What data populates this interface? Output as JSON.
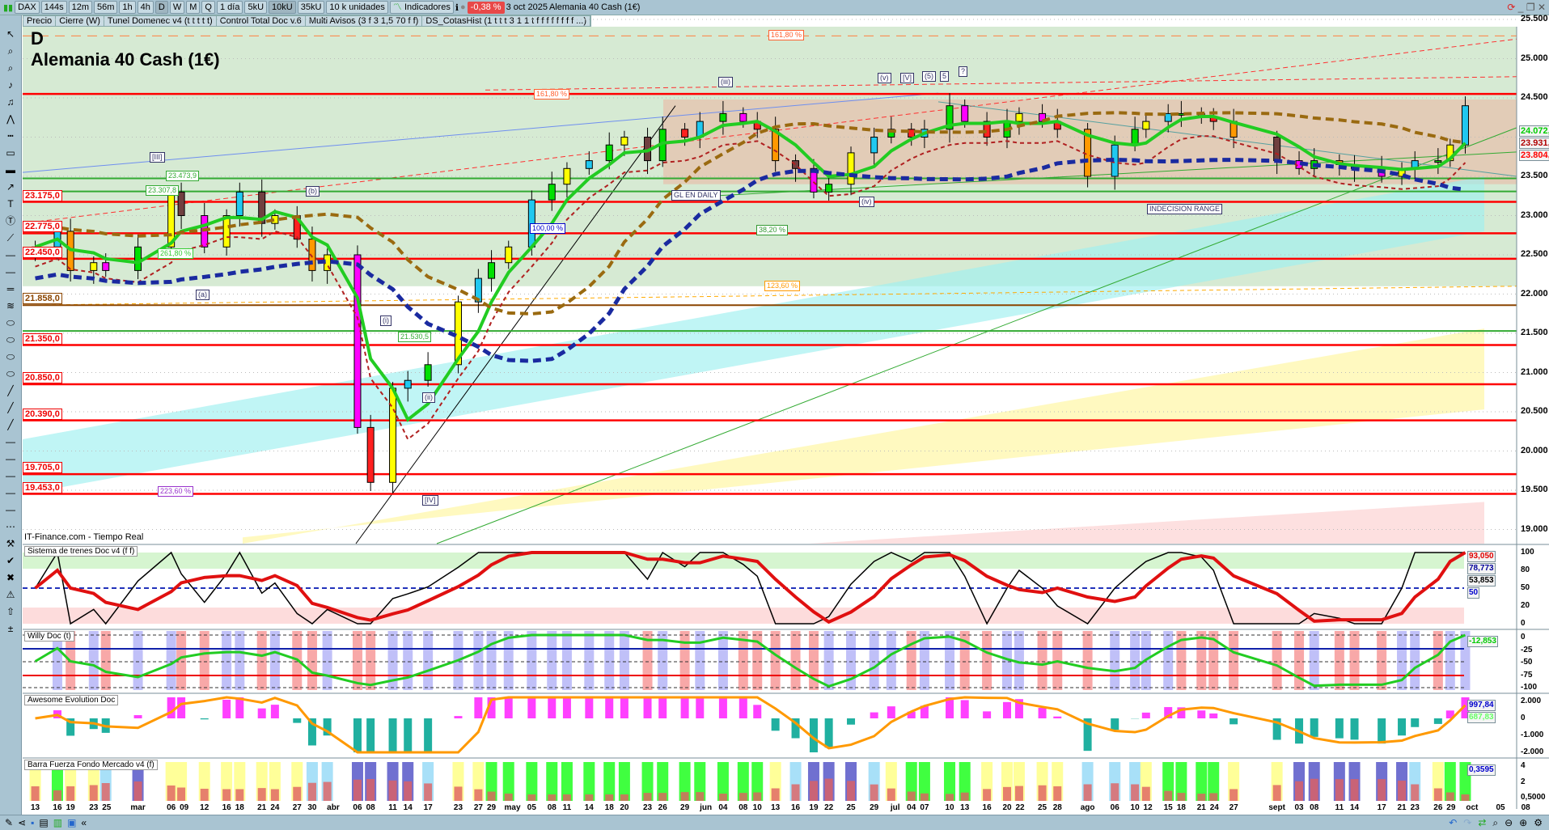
{
  "toolbar": {
    "symbol": "DAX",
    "timeframes": [
      "144s",
      "12m",
      "56m",
      "1h",
      "4h",
      "D",
      "W",
      "M",
      "Q"
    ],
    "active_timeframe": "D",
    "period": "1 día",
    "units": [
      "5kU",
      "10kU",
      "35kU"
    ],
    "active_unit": "10kU",
    "units_select": "10 k unidades",
    "indicators_label": "Indicadores",
    "change_pct": "-0,38 %",
    "date": "3 oct 2025",
    "instrument": "Alemania 40 Cash (1€)"
  },
  "legend_bar": [
    "Precio",
    "Cierre (W)",
    "Tunel Domenec v4 (t t t t t)",
    "Control Total Doc v.6",
    "Multi Avisos (3 f 3 1,5 70 f f)",
    "DS_CotasHist (1 t t t 3 1 1 t f f f f f f f f ...)"
  ],
  "chart": {
    "period_letter": "D",
    "title": "Alemania 40 Cash (1€)",
    "source": "IT-Finance.com - Tiempo Real"
  },
  "price_axis": [
    "25.500",
    "25.000",
    "24.500",
    "23.500",
    "23.000",
    "22.500",
    "22.000",
    "21.500",
    "21.000",
    "20.500",
    "20.000",
    "19.500",
    "19.000"
  ],
  "price_tags": [
    {
      "text": "24.072,8",
      "color": "#00cc00"
    },
    {
      "text": "23.931,9",
      "color": "#b00000"
    },
    {
      "text": "23.804,2",
      "color": "#ff0000"
    }
  ],
  "level_labels": [
    "23.175,0",
    "22.775,0",
    "22.450,0",
    "21.858,0",
    "21.350,0",
    "20.850,0",
    "20.390,0",
    "19.705,0",
    "19.453,0"
  ],
  "levels": [
    {
      "price": 24550,
      "color": "#ff0000"
    },
    {
      "price": 23175,
      "color": "#ff0000"
    },
    {
      "price": 22775,
      "color": "#ff0000"
    },
    {
      "price": 22450,
      "color": "#ff0000"
    },
    {
      "price": 21858,
      "color": "#8b4500"
    },
    {
      "price": 21530,
      "color": "#33aa33"
    },
    {
      "price": 21350,
      "color": "#ff0000"
    },
    {
      "price": 20850,
      "color": "#ff0000"
    },
    {
      "price": 20390,
      "color": "#ff0000"
    },
    {
      "price": 19705,
      "color": "#ff0000"
    },
    {
      "price": 19453,
      "color": "#ff0000"
    },
    {
      "price": 23474,
      "color": "#33aa33"
    },
    {
      "price": 23308,
      "color": "#33aa33"
    }
  ],
  "annotations": {
    "fib_top": "161,80 %",
    "fib_mid": "161,80 %",
    "fib_100": "100,00 %",
    "fib_123": "123,60 %",
    "fib_38": "38,20 %",
    "fib_261": "261,80 %",
    "fib_223": "223,60 %",
    "wave_III": "[III]",
    "wave_b": "(b)",
    "wave_a": "(a)",
    "wave_i": "(i)",
    "wave_ii": "(ii)",
    "wave_IV": "[IV]",
    "wave_iii": "(iii)",
    "wave_iv": "(iv)",
    "wave_v": "(v)",
    "wave_V": "[V]",
    "wave_5p": "(5)",
    "wave_5": "5",
    "question": "?",
    "gl": "GL EN DAILY",
    "range": "INDECISION RANGE",
    "p1": "23.473,9",
    "p2": "23.307,8",
    "p3": "21.530,5"
  },
  "panels": [
    {
      "title": "Sistema de trenes Doc v4 (f f)",
      "axis": [
        "100",
        "80",
        "50",
        "20",
        "0"
      ],
      "tags": [
        {
          "text": "93,050",
          "color": "#e00000"
        },
        {
          "text": "78,773",
          "color": "#000099"
        },
        {
          "text": "53,853",
          "color": "#000000"
        },
        {
          "text": "50",
          "color": "#0000cc"
        }
      ]
    },
    {
      "title": "Willy Doc (t)",
      "axis": [
        "0",
        "-25",
        "-50",
        "-75",
        "-100"
      ],
      "tags": [
        {
          "text": "-12,853",
          "color": "#00cc00"
        }
      ]
    },
    {
      "title": "Awesome Evolution Doc",
      "axis": [
        "2.000",
        "0",
        "-1.000",
        "-2.000"
      ],
      "tags": [
        {
          "text": "997,84",
          "color": "#0000cc"
        },
        {
          "text": "687,83",
          "color": "#66ff66"
        }
      ]
    },
    {
      "title": "Barra Fuerza Fondo Mercado v4 (f)",
      "axis": [
        "4",
        "2",
        "0,5000"
      ],
      "tags": [
        {
          "text": "0,3595",
          "color": "#0000cc"
        }
      ]
    }
  ],
  "chart_data": {
    "type": "candlestick",
    "x": [
      "13",
      "16",
      "19",
      "23",
      "25",
      "mar",
      "06",
      "09",
      "12",
      "16",
      "18",
      "21",
      "24",
      "27",
      "30",
      "abr",
      "06",
      "08",
      "11",
      "14",
      "17",
      "23",
      "27",
      "29",
      "may",
      "05",
      "08",
      "11",
      "14",
      "18",
      "20",
      "23",
      "26",
      "29",
      "jun",
      "04",
      "08",
      "10",
      "13",
      "16",
      "19",
      "22",
      "25",
      "29",
      "jul",
      "04",
      "07",
      "10",
      "13",
      "16",
      "20",
      "22",
      "25",
      "28",
      "ago",
      "06",
      "10",
      "12",
      "15",
      "18",
      "21",
      "24",
      "27",
      "sept",
      "03",
      "08",
      "11",
      "14",
      "17",
      "21",
      "23",
      "26",
      "29",
      "oct"
    ],
    "close": [
      22600,
      22800,
      22300,
      22400,
      22300,
      22600,
      23300,
      23000,
      22600,
      23000,
      23300,
      22900,
      23000,
      22700,
      22300,
      22500,
      20300,
      19600,
      20800,
      20900,
      21100,
      21900,
      22200,
      22400,
      22600,
      23200,
      23400,
      23600,
      23700,
      23900,
      24000,
      23700,
      24100,
      24000,
      24200,
      24300,
      24200,
      24100,
      23700,
      23600,
      23300,
      23400,
      23800,
      24000,
      24100,
      24000,
      24100,
      24400,
      24200,
      24000,
      24200,
      24300,
      24200,
      24100,
      23500,
      23900,
      24100,
      24200,
      24300,
      24300,
      24250,
      24200,
      24000,
      23700,
      23600,
      23700,
      23650,
      23600,
      23500,
      23600,
      23700,
      23700,
      23900,
      24400
    ],
    "future_dates": [
      "05",
      "08"
    ],
    "ylim": [
      18830,
      25500
    ]
  },
  "colors": {
    "up": "#00e000",
    "down": "#ff2020",
    "accent": "#e84848"
  }
}
